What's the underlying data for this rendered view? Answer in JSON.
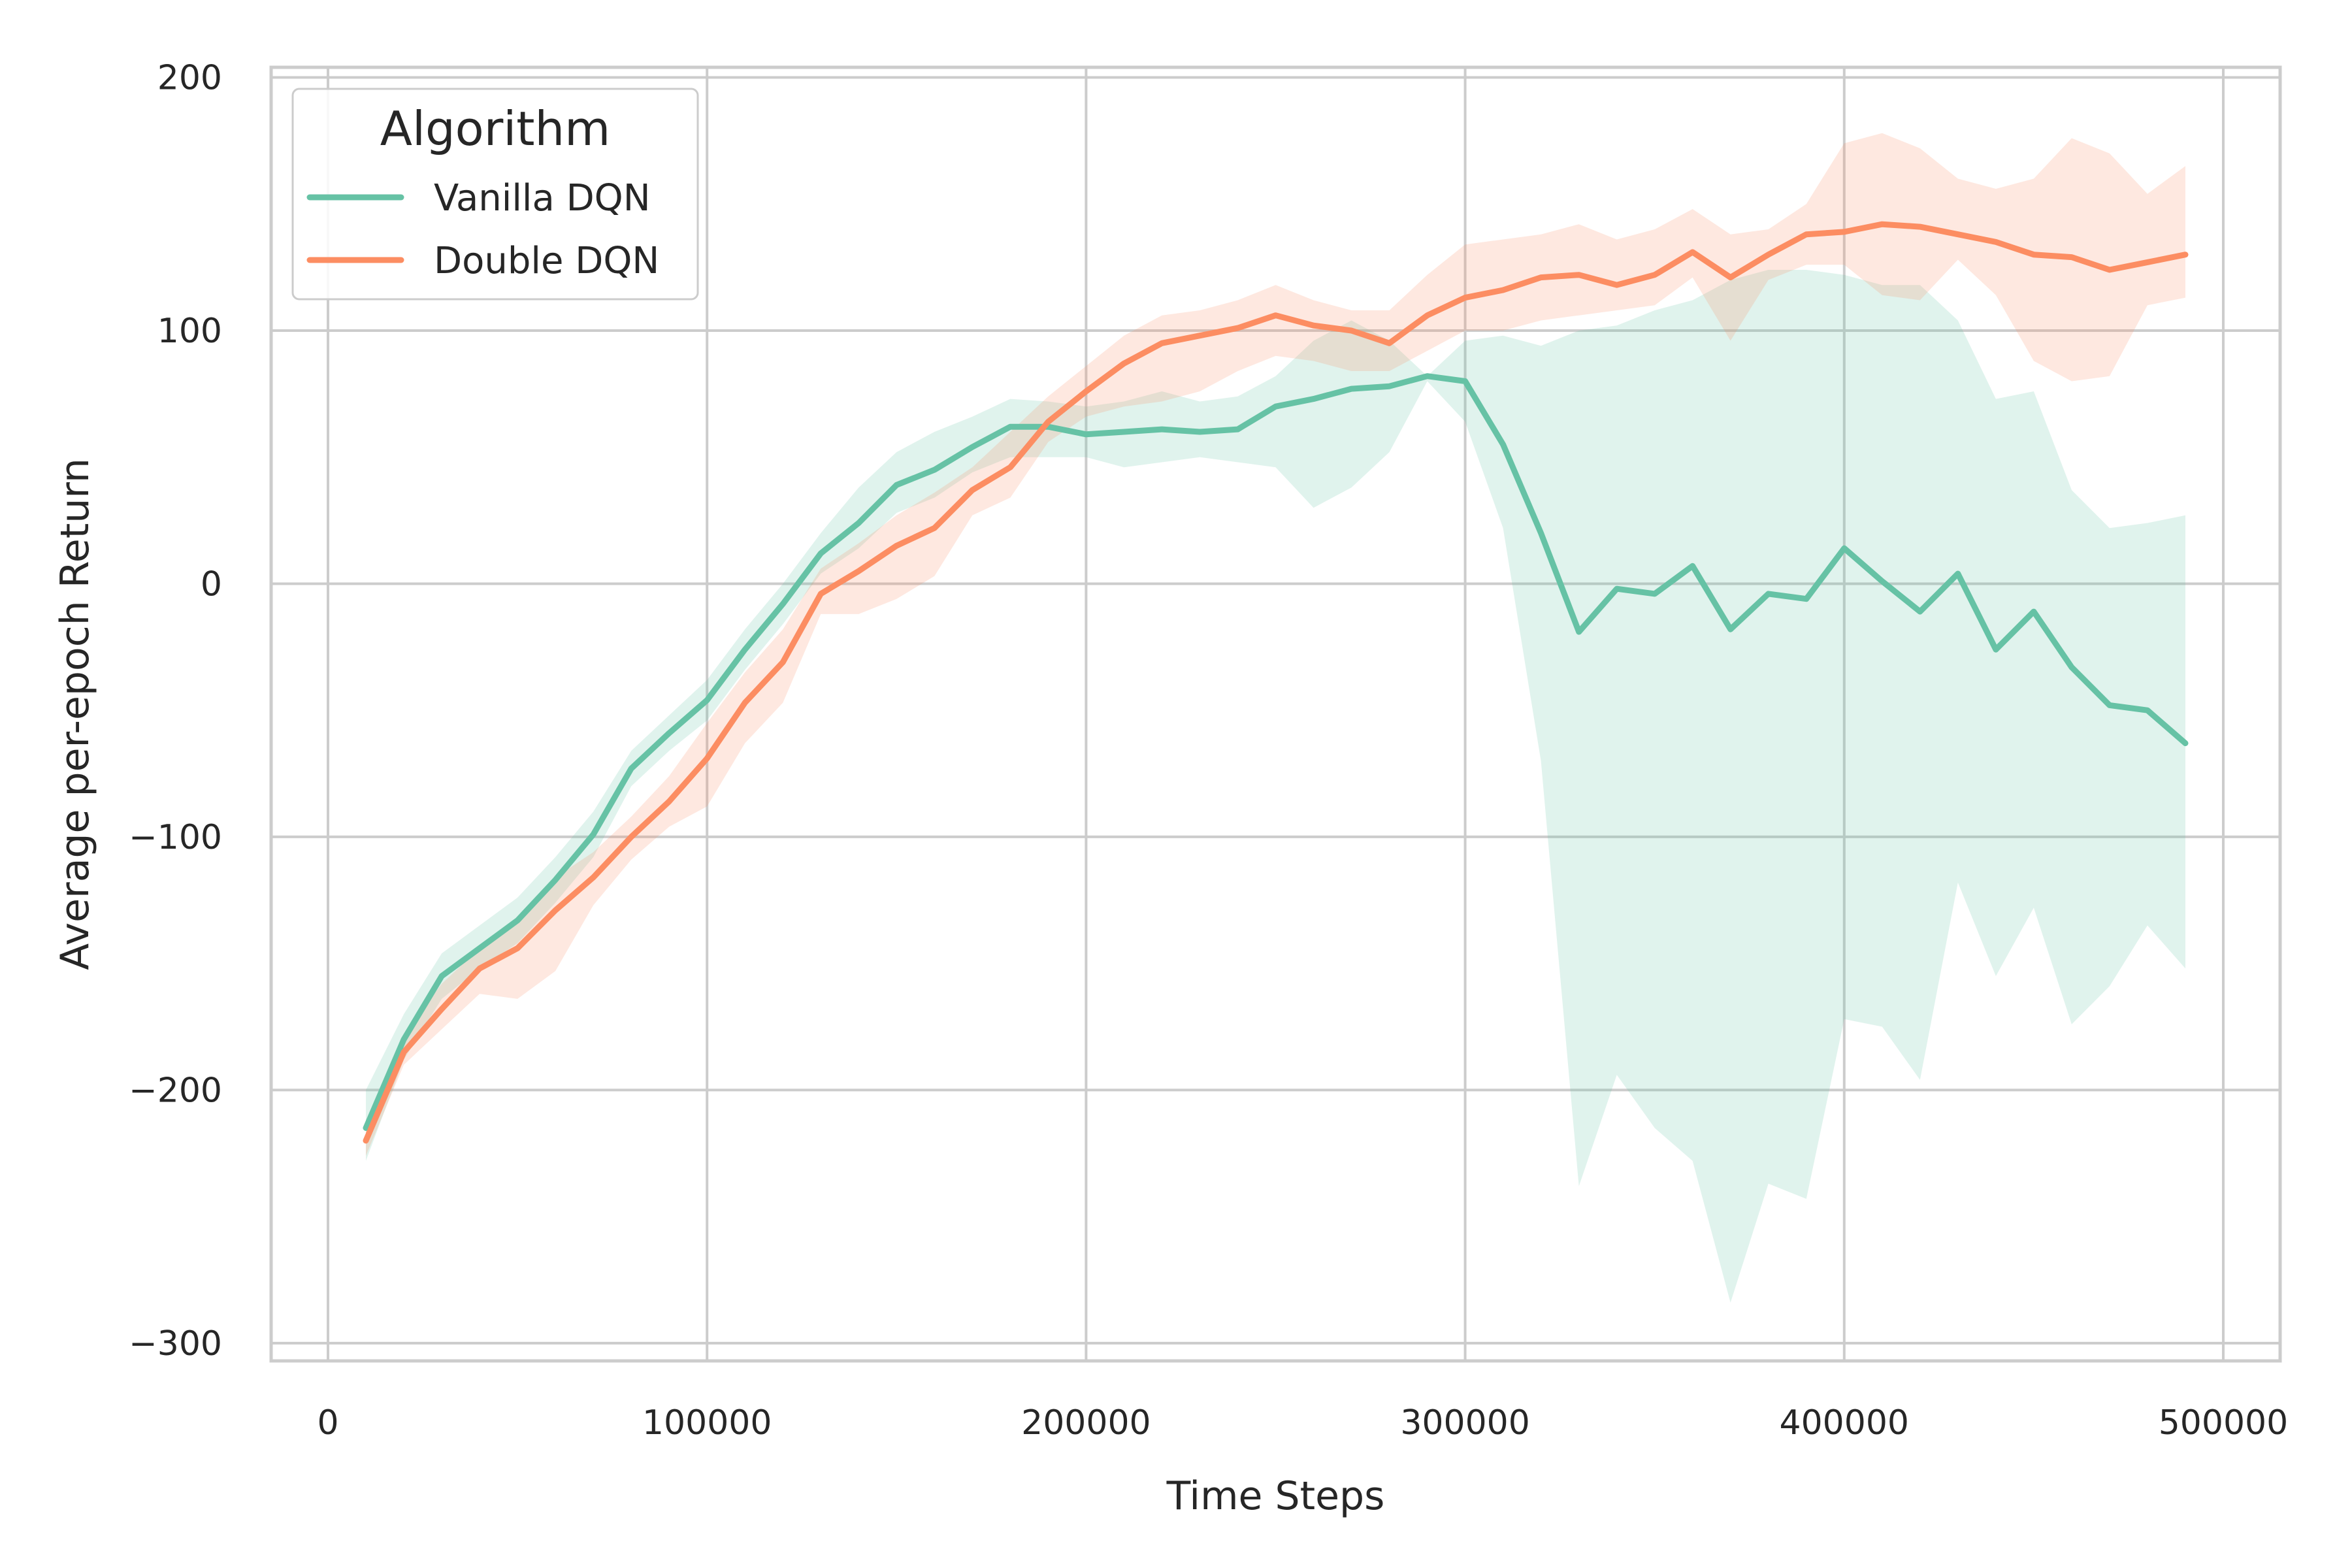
{
  "chart_data": {
    "type": "line",
    "xlabel": "Time Steps",
    "ylabel": "Average per-epoch Return",
    "xlim": [
      -15000,
      515000
    ],
    "ylim": [
      -307,
      204
    ],
    "xticks": [
      0,
      100000,
      200000,
      300000,
      400000,
      500000
    ],
    "yticks": [
      -300,
      -200,
      -100,
      0,
      100,
      200
    ],
    "grid": true,
    "legend": {
      "title": "Algorithm",
      "placement": "top-left"
    },
    "x": [
      10000,
      20000,
      30000,
      40000,
      50000,
      60000,
      70000,
      80000,
      90000,
      100000,
      110000,
      120000,
      130000,
      140000,
      150000,
      160000,
      170000,
      180000,
      190000,
      200000,
      210000,
      220000,
      230000,
      240000,
      250000,
      260000,
      270000,
      280000,
      290000,
      300000,
      310000,
      320000,
      330000,
      340000,
      350000,
      360000,
      370000,
      380000,
      390000,
      400000,
      410000,
      420000,
      430000,
      440000,
      450000,
      460000,
      470000,
      480000,
      490000
    ],
    "series": [
      {
        "name": "Vanilla DQN",
        "color": "#66c2a5",
        "mean": [
          -215,
          -180,
          -155,
          -144,
          -133,
          -117,
          -99,
          -73,
          -59,
          -46,
          -26,
          -8,
          12,
          24,
          39,
          45,
          54,
          62,
          62,
          59,
          60,
          61,
          60,
          61,
          70,
          73,
          77,
          78,
          82,
          80,
          55,
          20,
          -19,
          -2,
          -4,
          7,
          -18,
          -4,
          -6,
          14,
          1,
          -11,
          4,
          -26,
          -11,
          -33,
          -48,
          -50,
          -63
        ],
        "lower": [
          -228,
          -188,
          -164,
          -152,
          -142,
          -126,
          -108,
          -80,
          -66,
          -54,
          -34,
          -16,
          4,
          14,
          28,
          34,
          44,
          50,
          50,
          50,
          46,
          48,
          50,
          48,
          46,
          30,
          38,
          52,
          80,
          64,
          22,
          -70,
          -238,
          -194,
          -215,
          -228,
          -284,
          -237,
          -243,
          -172,
          -175,
          -196,
          -118,
          -155,
          -128,
          -174,
          -159,
          -135,
          -152
        ],
        "upper": [
          -200,
          -170,
          -146,
          -135,
          -124,
          -108,
          -90,
          -66,
          -52,
          -38,
          -18,
          0,
          20,
          38,
          52,
          60,
          66,
          73,
          72,
          70,
          72,
          76,
          72,
          74,
          82,
          96,
          104,
          96,
          82,
          96,
          98,
          94,
          100,
          102,
          108,
          112,
          120,
          124,
          124,
          122,
          118,
          118,
          104,
          73,
          76,
          37,
          22,
          24,
          27
        ]
      },
      {
        "name": "Double DQN",
        "color": "#fc8d62",
        "mean": [
          -220,
          -185,
          -168,
          -152,
          -144,
          -129,
          -116,
          -100,
          -86,
          -69,
          -47,
          -31,
          -4,
          5,
          15,
          22,
          37,
          46,
          64,
          76,
          87,
          95,
          98,
          101,
          106,
          102,
          100,
          95,
          106,
          113,
          116,
          121,
          122,
          118,
          122,
          131,
          121,
          130,
          138,
          139,
          142,
          141,
          138,
          135,
          130,
          129,
          124,
          127,
          130
        ],
        "lower": [
          -226,
          -190,
          -176,
          -162,
          -164,
          -153,
          -127,
          -109,
          -96,
          -88,
          -63,
          -47,
          -12,
          -12,
          -6,
          3,
          27,
          34,
          56,
          66,
          70,
          72,
          76,
          84,
          90,
          88,
          84,
          84,
          92,
          100,
          100,
          104,
          106,
          108,
          110,
          121,
          96,
          120,
          126,
          126,
          114,
          112,
          128,
          114,
          88,
          80,
          82,
          110,
          113
        ],
        "upper": [
          -212,
          -178,
          -158,
          -144,
          -134,
          -116,
          -106,
          -92,
          -76,
          -55,
          -35,
          -18,
          6,
          16,
          27,
          36,
          46,
          60,
          74,
          86,
          98,
          106,
          108,
          112,
          118,
          112,
          108,
          108,
          122,
          134,
          136,
          138,
          142,
          136,
          140,
          148,
          138,
          140,
          150,
          174,
          178,
          172,
          160,
          156,
          160,
          176,
          170,
          154,
          165
        ]
      }
    ]
  }
}
